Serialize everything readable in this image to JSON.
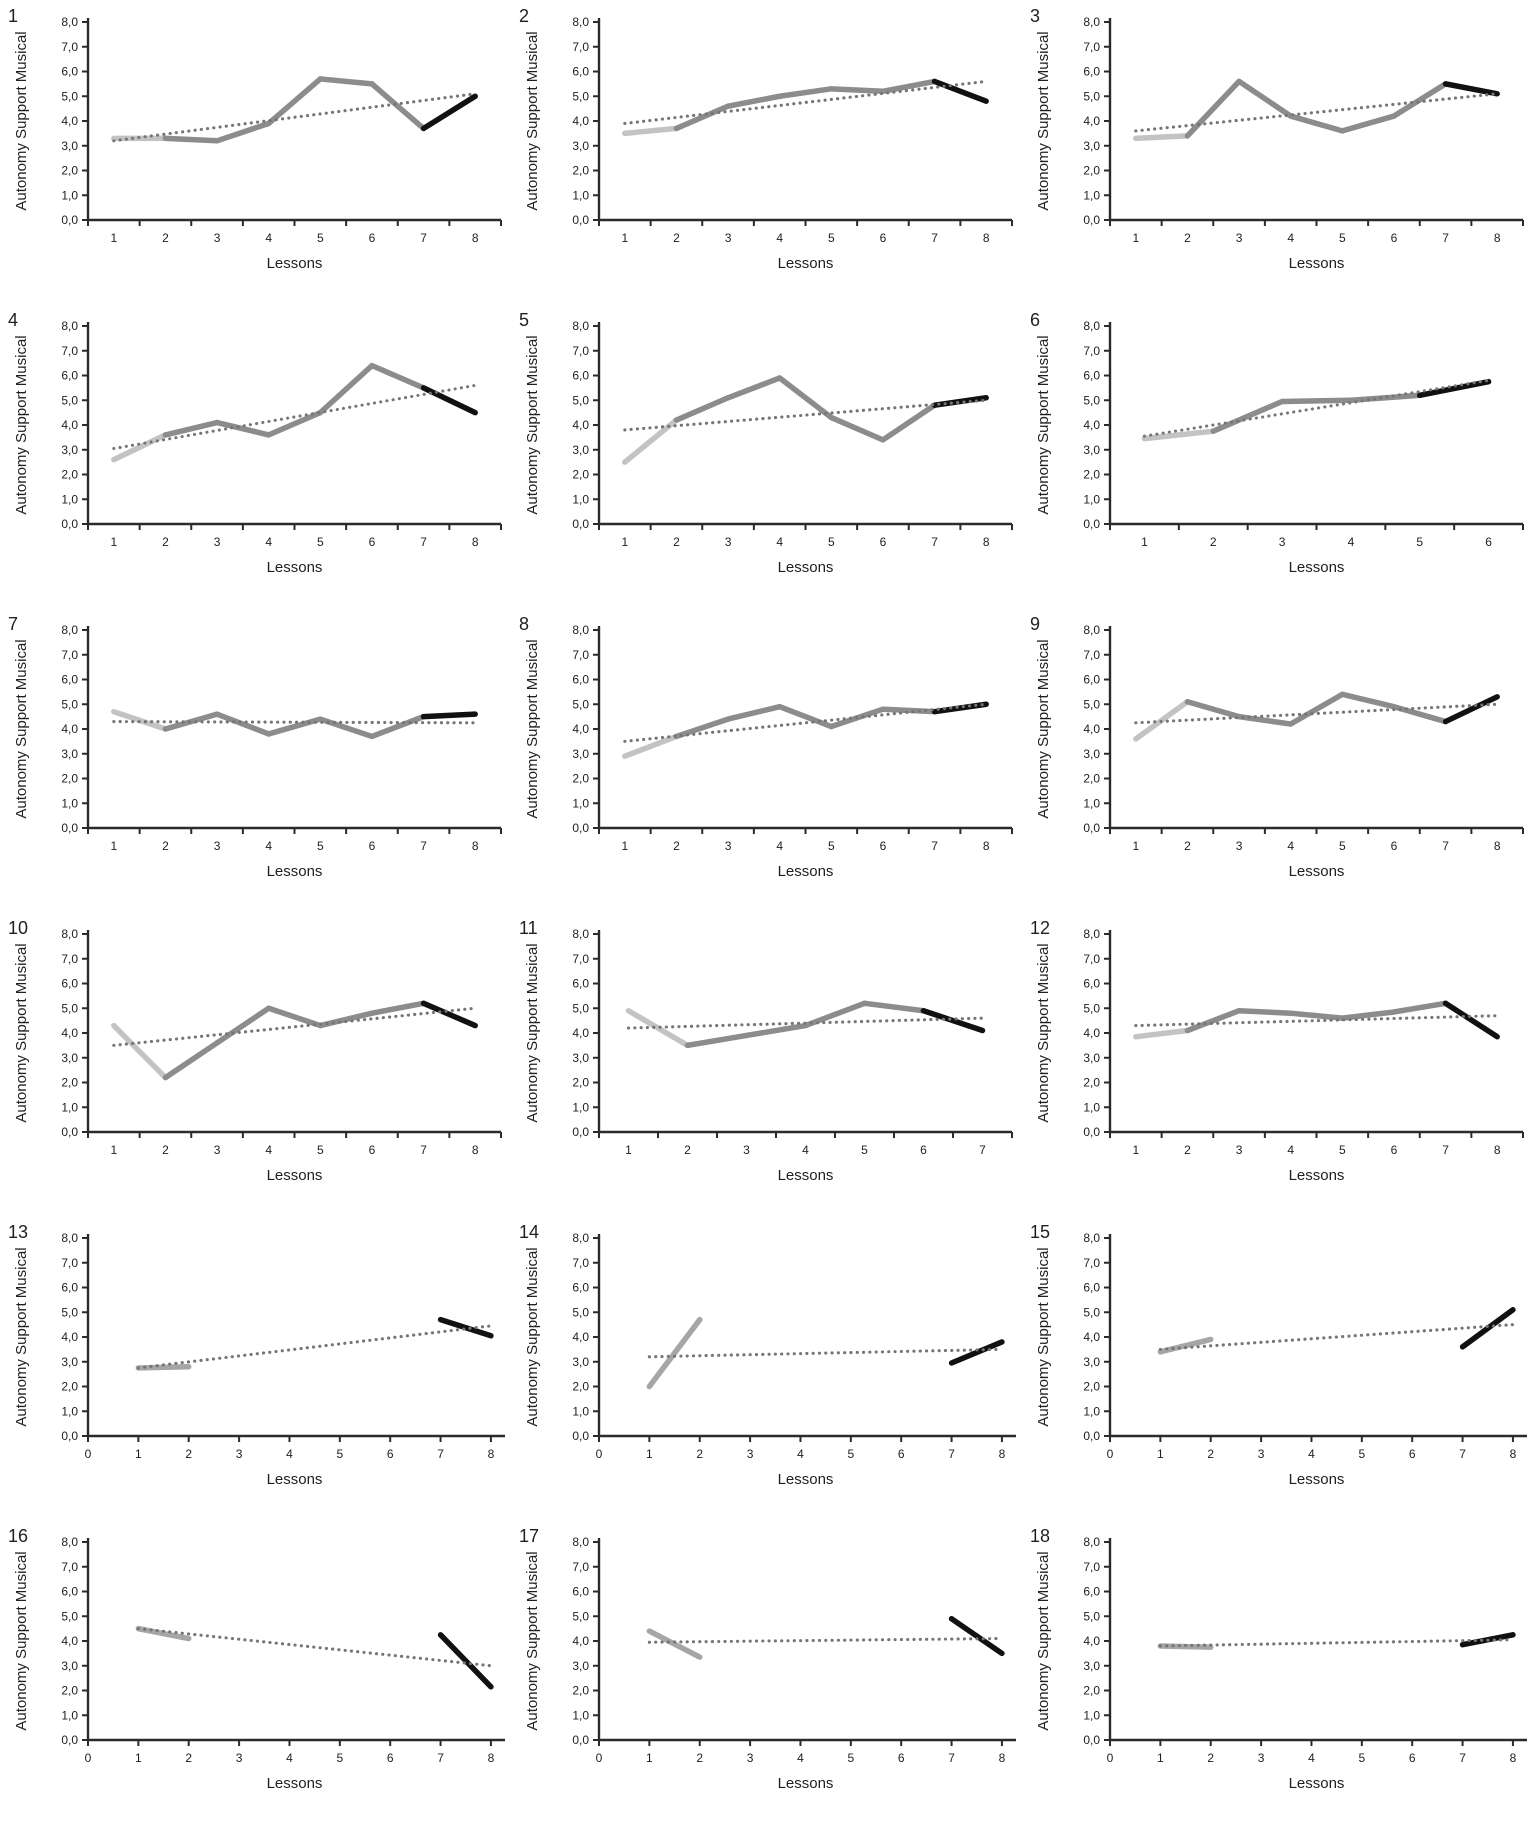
{
  "figure": {
    "ylabel": "Autonomy Support Musical",
    "xlabel": "Lessons",
    "ylim": [
      0,
      8
    ],
    "ytick_values": [
      0,
      1,
      2,
      3,
      4,
      5,
      6,
      7,
      8
    ],
    "ytick_labels": [
      "0,0",
      "1,0",
      "2,0",
      "3,0",
      "4,0",
      "5,0",
      "6,0",
      "7,0",
      "8,0"
    ],
    "grid": false,
    "legend": "none",
    "colors": {
      "first_segment": "#c3c3c3",
      "first_segment_gap_charts": "#a6a6a6",
      "mid_segments": "#8c8c8c",
      "last_segment": "#111111",
      "trend_dotted": "#757575",
      "axis": "#2b2b2b",
      "text": "#1f1f1f"
    }
  },
  "chart_data": [
    {
      "type": "line",
      "label": "1",
      "axis_type": "category",
      "x": [
        1,
        2,
        3,
        4,
        5,
        6,
        7,
        8
      ],
      "xtick_labels": [
        "1",
        "2",
        "3",
        "4",
        "5",
        "6",
        "7",
        "8"
      ],
      "values": [
        3.3,
        3.3,
        3.2,
        3.9,
        5.7,
        5.5,
        3.7,
        5.0
      ],
      "trend": {
        "x": [
          1,
          8
        ],
        "y": [
          3.2,
          5.1
        ]
      }
    },
    {
      "type": "line",
      "label": "2",
      "axis_type": "category",
      "x": [
        1,
        2,
        3,
        4,
        5,
        6,
        7,
        8
      ],
      "xtick_labels": [
        "1",
        "2",
        "3",
        "4",
        "5",
        "6",
        "7",
        "8"
      ],
      "values": [
        3.5,
        3.7,
        4.6,
        5.0,
        5.3,
        5.2,
        5.6,
        4.8
      ],
      "trend": {
        "x": [
          1,
          8
        ],
        "y": [
          3.9,
          5.6
        ]
      }
    },
    {
      "type": "line",
      "label": "3",
      "axis_type": "category",
      "x": [
        1,
        2,
        3,
        4,
        5,
        6,
        7,
        8
      ],
      "xtick_labels": [
        "1",
        "2",
        "3",
        "4",
        "5",
        "6",
        "7",
        "8"
      ],
      "values": [
        3.3,
        3.4,
        5.6,
        4.2,
        3.6,
        4.2,
        5.5,
        5.1
      ],
      "trend": {
        "x": [
          1,
          8
        ],
        "y": [
          3.6,
          5.1
        ]
      }
    },
    {
      "type": "line",
      "label": "4",
      "axis_type": "category",
      "x": [
        1,
        2,
        3,
        4,
        5,
        6,
        7,
        8
      ],
      "xtick_labels": [
        "1",
        "2",
        "3",
        "4",
        "5",
        "6",
        "7",
        "8"
      ],
      "values": [
        2.6,
        3.6,
        4.1,
        3.6,
        4.5,
        6.4,
        5.5,
        4.5
      ],
      "trend": {
        "x": [
          1,
          8
        ],
        "y": [
          3.05,
          5.6
        ]
      }
    },
    {
      "type": "line",
      "label": "5",
      "axis_type": "category",
      "x": [
        1,
        2,
        3,
        4,
        5,
        6,
        7,
        8
      ],
      "xtick_labels": [
        "1",
        "2",
        "3",
        "4",
        "5",
        "6",
        "7",
        "8"
      ],
      "values": [
        2.5,
        4.2,
        5.1,
        5.9,
        4.3,
        3.4,
        4.8,
        5.1
      ],
      "trend": {
        "x": [
          1,
          8
        ],
        "y": [
          3.8,
          5.0
        ]
      }
    },
    {
      "type": "line",
      "label": "6",
      "axis_type": "category",
      "x": [
        1,
        2,
        3,
        4,
        5,
        6
      ],
      "xtick_labels": [
        "1",
        "2",
        "3",
        "4",
        "5",
        "6"
      ],
      "values": [
        3.45,
        3.75,
        4.95,
        5.0,
        5.2,
        5.75
      ],
      "trend": {
        "x": [
          1,
          6
        ],
        "y": [
          3.55,
          5.8
        ]
      }
    },
    {
      "type": "line",
      "label": "7",
      "axis_type": "category",
      "x": [
        1,
        2,
        3,
        4,
        5,
        6,
        7,
        8
      ],
      "xtick_labels": [
        "1",
        "2",
        "3",
        "4",
        "5",
        "6",
        "7",
        "8"
      ],
      "values": [
        4.7,
        4.0,
        4.6,
        3.8,
        4.4,
        3.7,
        4.5,
        4.6
      ],
      "trend": {
        "x": [
          1,
          8
        ],
        "y": [
          4.3,
          4.25
        ]
      }
    },
    {
      "type": "line",
      "label": "8",
      "axis_type": "category",
      "x": [
        1,
        2,
        3,
        4,
        5,
        6,
        7,
        8
      ],
      "xtick_labels": [
        "1",
        "2",
        "3",
        "4",
        "5",
        "6",
        "7",
        "8"
      ],
      "values": [
        2.9,
        3.7,
        4.4,
        4.9,
        4.1,
        4.8,
        4.7,
        5.0
      ],
      "trend": {
        "x": [
          1,
          8
        ],
        "y": [
          3.5,
          5.0
        ]
      }
    },
    {
      "type": "line",
      "label": "9",
      "axis_type": "category",
      "x": [
        1,
        2,
        3,
        4,
        5,
        6,
        7,
        8
      ],
      "xtick_labels": [
        "1",
        "2",
        "3",
        "4",
        "5",
        "6",
        "7",
        "8"
      ],
      "values": [
        3.6,
        5.1,
        4.5,
        4.2,
        5.4,
        4.9,
        4.3,
        5.3
      ],
      "trend": {
        "x": [
          1,
          8
        ],
        "y": [
          4.25,
          5.0
        ]
      }
    },
    {
      "type": "line",
      "label": "10",
      "axis_type": "category",
      "x": [
        1,
        2,
        3,
        4,
        5,
        6,
        7,
        8
      ],
      "xtick_labels": [
        "1",
        "2",
        "3",
        "4",
        "5",
        "6",
        "7",
        "8"
      ],
      "values": [
        4.3,
        2.2,
        3.6,
        5.0,
        4.3,
        4.8,
        5.2,
        4.3
      ],
      "trend": {
        "x": [
          1,
          8
        ],
        "y": [
          3.5,
          5.0
        ]
      }
    },
    {
      "type": "line",
      "label": "11",
      "axis_type": "category",
      "x": [
        1,
        2,
        3,
        4,
        5,
        6,
        7
      ],
      "xtick_labels": [
        "1",
        "2",
        "3",
        "4",
        "5",
        "6",
        "7"
      ],
      "values": [
        4.9,
        3.5,
        3.9,
        4.3,
        5.2,
        4.9,
        4.1
      ],
      "trend": {
        "x": [
          1,
          7
        ],
        "y": [
          4.2,
          4.6
        ]
      }
    },
    {
      "type": "line",
      "label": "12",
      "axis_type": "category",
      "x": [
        1,
        2,
        3,
        4,
        5,
        6,
        7,
        8
      ],
      "xtick_labels": [
        "1",
        "2",
        "3",
        "4",
        "5",
        "6",
        "7",
        "8"
      ],
      "values": [
        3.85,
        4.1,
        4.9,
        4.8,
        4.6,
        4.85,
        5.2,
        3.85
      ],
      "trend": {
        "x": [
          1,
          8
        ],
        "y": [
          4.3,
          4.7
        ]
      }
    },
    {
      "type": "line",
      "label": "13",
      "axis_type": "numeric",
      "x": [
        1,
        2,
        3,
        4,
        5,
        6,
        7,
        8
      ],
      "xtick_labels": [
        "0",
        "1",
        "2",
        "3",
        "4",
        "5",
        "6",
        "7",
        "8"
      ],
      "values": [
        2.75,
        2.8,
        null,
        null,
        null,
        null,
        4.7,
        4.05
      ],
      "trend": {
        "x": [
          1,
          8
        ],
        "y": [
          2.75,
          4.45
        ]
      }
    },
    {
      "type": "line",
      "label": "14",
      "axis_type": "numeric",
      "x": [
        1,
        2,
        3,
        4,
        5,
        6,
        7,
        8
      ],
      "xtick_labels": [
        "0",
        "1",
        "2",
        "3",
        "4",
        "5",
        "6",
        "7",
        "8"
      ],
      "values": [
        2.0,
        4.7,
        null,
        null,
        null,
        null,
        2.95,
        3.8
      ],
      "trend": {
        "x": [
          1,
          8
        ],
        "y": [
          3.2,
          3.5
        ]
      }
    },
    {
      "type": "line",
      "label": "15",
      "axis_type": "numeric",
      "x": [
        1,
        2,
        3,
        4,
        5,
        6,
        7,
        8
      ],
      "xtick_labels": [
        "0",
        "1",
        "2",
        "3",
        "4",
        "5",
        "6",
        "7",
        "8"
      ],
      "values": [
        3.4,
        3.9,
        null,
        null,
        null,
        null,
        3.6,
        5.1
      ],
      "trend": {
        "x": [
          1,
          8
        ],
        "y": [
          3.5,
          4.5
        ]
      }
    },
    {
      "type": "line",
      "label": "16",
      "axis_type": "numeric",
      "x": [
        1,
        2,
        3,
        4,
        5,
        6,
        7,
        8
      ],
      "xtick_labels": [
        "0",
        "1",
        "2",
        "3",
        "4",
        "5",
        "6",
        "7",
        "8"
      ],
      "values": [
        4.5,
        4.1,
        null,
        null,
        null,
        null,
        4.25,
        2.15
      ],
      "trend": {
        "x": [
          1,
          8
        ],
        "y": [
          4.5,
          3.0
        ]
      }
    },
    {
      "type": "line",
      "label": "17",
      "axis_type": "numeric",
      "x": [
        1,
        2,
        3,
        4,
        5,
        6,
        7,
        8
      ],
      "xtick_labels": [
        "0",
        "1",
        "2",
        "3",
        "4",
        "5",
        "6",
        "7",
        "8"
      ],
      "values": [
        4.4,
        3.35,
        null,
        null,
        null,
        null,
        4.9,
        3.5
      ],
      "trend": {
        "x": [
          1,
          8
        ],
        "y": [
          3.95,
          4.1
        ]
      }
    },
    {
      "type": "line",
      "label": "18",
      "axis_type": "numeric",
      "x": [
        1,
        2,
        3,
        4,
        5,
        6,
        7,
        8
      ],
      "xtick_labels": [
        "0",
        "1",
        "2",
        "3",
        "4",
        "5",
        "6",
        "7",
        "8"
      ],
      "values": [
        3.8,
        3.75,
        null,
        null,
        null,
        null,
        3.85,
        4.25
      ],
      "trend": {
        "x": [
          1,
          8
        ],
        "y": [
          3.8,
          4.05
        ]
      }
    }
  ]
}
